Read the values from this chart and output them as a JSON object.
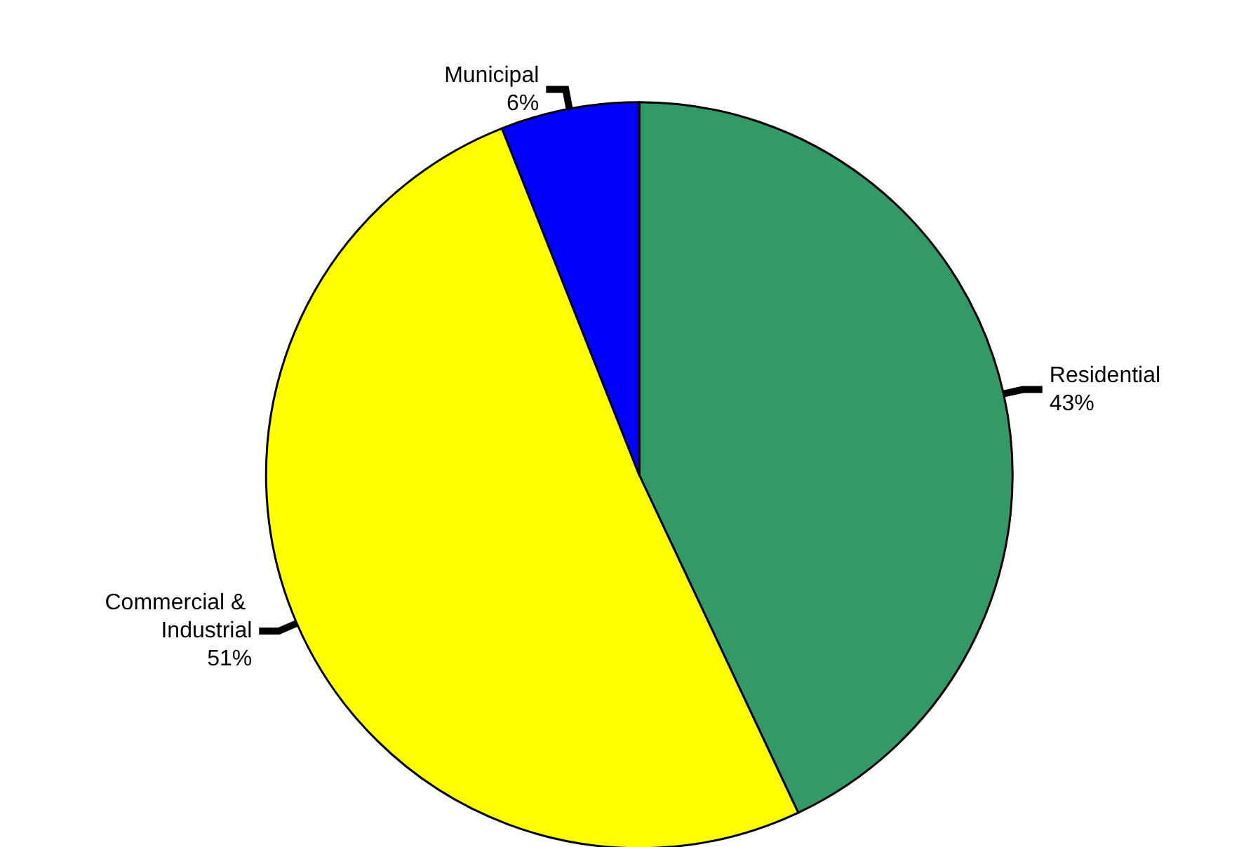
{
  "chart_data": {
    "type": "pie",
    "categories": [
      "Residential",
      "Commercial & Industrial",
      "Municipal"
    ],
    "values": [
      43,
      51,
      6
    ],
    "colors": [
      "#339966",
      "#ffff00",
      "#0000ff"
    ],
    "value_labels": [
      "43%",
      "51%",
      "6%"
    ],
    "legend": false
  }
}
